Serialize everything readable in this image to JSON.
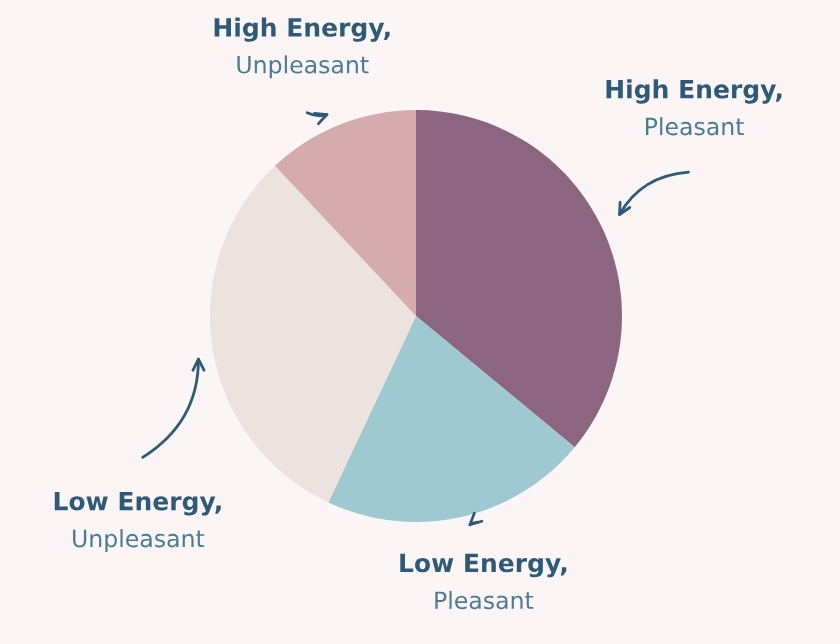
{
  "chart_data": {
    "type": "pie",
    "categories": [
      "High Energy,\nPleasant",
      "Low Energy,\nPleasant",
      "Low Energy,\nUnpleasant",
      "High Energy,\nUnpleasant"
    ],
    "values": [
      36,
      21,
      31,
      12
    ],
    "colors": [
      "#8c6680",
      "#9fc9d0",
      "#ece3de",
      "#d5abae"
    ]
  }
}
